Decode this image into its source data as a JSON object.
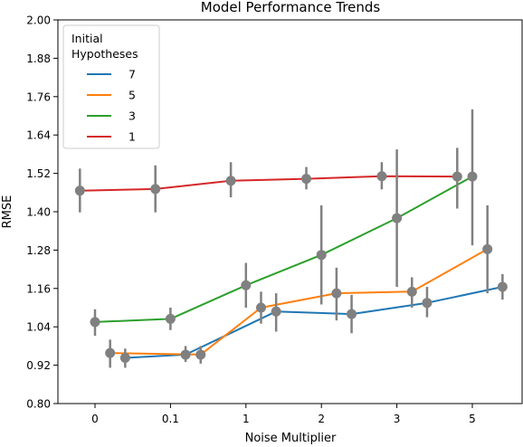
{
  "chart_data": {
    "type": "line",
    "title": "Model Performance Trends",
    "xlabel": "Noise Multiplier",
    "ylabel": "RMSE",
    "categories": [
      "0",
      "0.1",
      "1",
      "2",
      "3",
      "5"
    ],
    "ylim": [
      0.8,
      2.0
    ],
    "yticks": [
      "0.80",
      "0.92",
      "1.04",
      "1.16",
      "1.28",
      "1.40",
      "1.52",
      "1.64",
      "1.76",
      "1.88",
      "2.00"
    ],
    "grid": false,
    "legend": {
      "title": "Initial\nHypotheses",
      "placement": "top-left"
    },
    "marker_color": "#808080",
    "series": [
      {
        "name": "7",
        "color": "#1f77b4",
        "points": [
          {
            "x": 0.4,
            "y": 0.943,
            "err": [
              0.912,
              0.972
            ]
          },
          {
            "x": 1.2,
            "y": 0.953,
            "err": [
              0.93,
              0.98
            ]
          },
          {
            "x": 2.4,
            "y": 1.088,
            "err": [
              1.025,
              1.145
            ]
          },
          {
            "x": 3.4,
            "y": 1.08,
            "err": [
              1.02,
              1.14
            ]
          },
          {
            "x": 4.4,
            "y": 1.115,
            "err": [
              1.07,
              1.165
            ]
          },
          {
            "x": 5.4,
            "y": 1.165,
            "err": [
              1.125,
              1.205
            ]
          }
        ]
      },
      {
        "name": "5",
        "color": "#ff7f0e",
        "points": [
          {
            "x": 0.2,
            "y": 0.958,
            "err": [
              0.912,
              1.0
            ]
          },
          {
            "x": 1.4,
            "y": 0.953,
            "err": [
              0.925,
              0.98
            ]
          },
          {
            "x": 2.2,
            "y": 1.1,
            "err": [
              1.05,
              1.15
            ]
          },
          {
            "x": 3.2,
            "y": 1.145,
            "err": [
              1.06,
              1.225
            ]
          },
          {
            "x": 4.2,
            "y": 1.15,
            "err": [
              1.1,
              1.195
            ]
          },
          {
            "x": 5.2,
            "y": 1.283,
            "err": [
              1.145,
              1.42
            ]
          }
        ]
      },
      {
        "name": "3",
        "color": "#2ca02c",
        "points": [
          {
            "x": 0.0,
            "y": 1.055,
            "err": [
              1.012,
              1.095
            ]
          },
          {
            "x": 1.0,
            "y": 1.065,
            "err": [
              1.03,
              1.1
            ]
          },
          {
            "x": 2.0,
            "y": 1.17,
            "err": [
              1.1,
              1.24
            ]
          },
          {
            "x": 3.0,
            "y": 1.265,
            "err": [
              1.11,
              1.42
            ]
          },
          {
            "x": 4.0,
            "y": 1.38,
            "err": [
              1.165,
              1.595
            ]
          },
          {
            "x": 5.0,
            "y": 1.51,
            "err": [
              1.295,
              1.72
            ]
          }
        ]
      },
      {
        "name": "1",
        "color": "#d62728",
        "points": [
          {
            "x": -0.2,
            "y": 1.466,
            "err": [
              1.398,
              1.535
            ]
          },
          {
            "x": 0.8,
            "y": 1.471,
            "err": [
              1.398,
              1.545
            ]
          },
          {
            "x": 1.8,
            "y": 1.497,
            "err": [
              1.445,
              1.555
            ]
          },
          {
            "x": 2.8,
            "y": 1.503,
            "err": [
              1.47,
              1.54
            ]
          },
          {
            "x": 3.8,
            "y": 1.511,
            "err": [
              1.47,
              1.555
            ]
          },
          {
            "x": 4.8,
            "y": 1.51,
            "err": [
              1.41,
              1.6
            ]
          }
        ]
      }
    ]
  }
}
